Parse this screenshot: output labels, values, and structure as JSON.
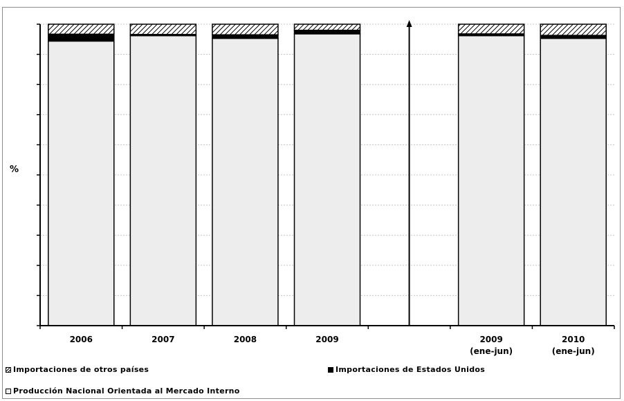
{
  "chart_data": {
    "type": "bar",
    "stacked": true,
    "ylabel": "%",
    "ylim": [
      0,
      100
    ],
    "grid": true,
    "categories": [
      "2006",
      "2007",
      "2008",
      "2009",
      "2009\n(ene-jun)",
      "2010\n(ene-jun)"
    ],
    "series": [
      {
        "name": "Producción Nacional Orientada al Mercado Interno",
        "values": [
          94.4,
          96.2,
          95.3,
          96.8,
          96.2,
          95.3
        ],
        "color": "#ededed"
      },
      {
        "name": "Importaciones de Estados Unidos",
        "values": [
          2.3,
          0.4,
          1.2,
          1.2,
          0.6,
          1.0
        ],
        "color": "#000000"
      },
      {
        "name": "Importaciones de otros países",
        "values": [
          3.3,
          3.4,
          3.5,
          2.0,
          3.2,
          3.7
        ],
        "pattern": "hatch"
      }
    ],
    "legend": [
      {
        "label": "Importaciones de otros países",
        "swatch": "hatch"
      },
      {
        "label": "Importaciones de Estados Unidos",
        "swatch": "black"
      },
      {
        "label": "Producción Nacional Orientada al Mercado Interno",
        "swatch": "light"
      }
    ]
  }
}
